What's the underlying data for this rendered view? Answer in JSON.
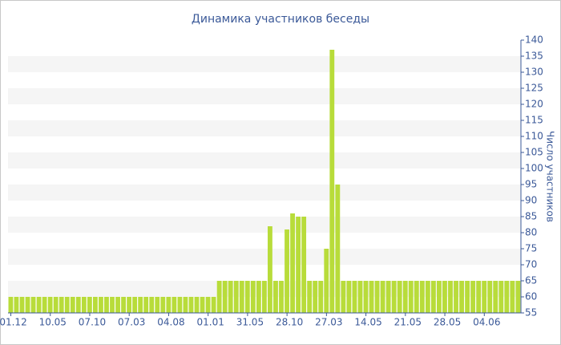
{
  "chart_data": {
    "type": "bar",
    "title": "Динамика участников беседы",
    "y_label": "Число участников",
    "color": "#b8dc3a",
    "grid": true,
    "ylim": [
      55,
      140
    ],
    "yticks": [
      55,
      60,
      65,
      70,
      75,
      80,
      85,
      90,
      95,
      100,
      105,
      110,
      115,
      120,
      125,
      130,
      135,
      140
    ],
    "categories": [
      "01.12",
      null,
      null,
      null,
      null,
      null,
      null,
      "10.05",
      null,
      null,
      null,
      null,
      null,
      null,
      "07.10",
      null,
      null,
      null,
      null,
      null,
      null,
      "07.03",
      null,
      null,
      null,
      null,
      null,
      null,
      "04.08",
      null,
      null,
      null,
      null,
      null,
      null,
      "01.01",
      null,
      null,
      null,
      null,
      null,
      null,
      "31.05",
      null,
      null,
      null,
      null,
      null,
      null,
      "28.10",
      null,
      null,
      null,
      null,
      null,
      null,
      "27.03",
      null,
      null,
      null,
      null,
      null,
      null,
      "14.05",
      null,
      null,
      null,
      null,
      null,
      null,
      "21.05",
      null,
      null,
      null,
      null,
      null,
      null,
      "28.05",
      null,
      null,
      null,
      null,
      null,
      null,
      "04.06",
      null,
      null,
      null,
      null,
      null,
      null
    ],
    "values": [
      60,
      60,
      60,
      60,
      60,
      60,
      60,
      60,
      60,
      60,
      60,
      60,
      60,
      60,
      60,
      60,
      60,
      60,
      60,
      60,
      60,
      60,
      60,
      60,
      60,
      60,
      60,
      60,
      60,
      60,
      60,
      60,
      60,
      60,
      60,
      60,
      60,
      65,
      65,
      65,
      65,
      65,
      65,
      65,
      65,
      65,
      82,
      65,
      65,
      81,
      86,
      85,
      85,
      65,
      65,
      65,
      75,
      137,
      95,
      65,
      65,
      65,
      65,
      65,
      65,
      65,
      65,
      65,
      65,
      65,
      65,
      65,
      65,
      65,
      65,
      65,
      65,
      65,
      65,
      65,
      65,
      65,
      65,
      65,
      65,
      65,
      65,
      65,
      65,
      65,
      65
    ]
  }
}
